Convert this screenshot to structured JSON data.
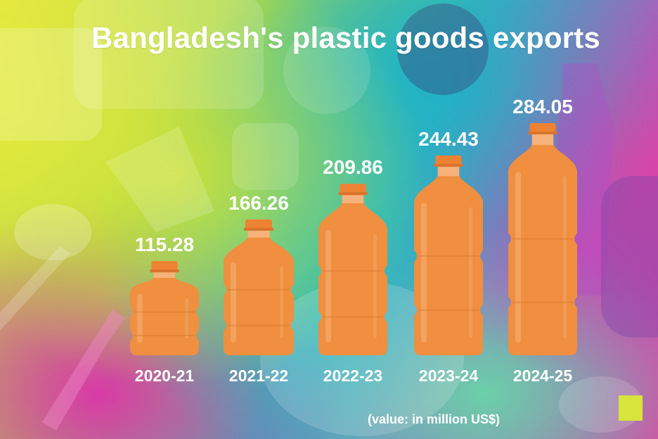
{
  "title": "Bangladesh's plastic goods exports",
  "unit_note": "(value: in million US$)",
  "colors": {
    "bottle": "#ef8f3f",
    "bottle_dark": "#d9742c",
    "bottle_highlight": "#f6b27a",
    "cap": "#ee8233",
    "text": "#ffffff"
  },
  "chart_data": {
    "type": "bar",
    "categories": [
      "2020-21",
      "2021-22",
      "2022-23",
      "2023-24",
      "2024-25"
    ],
    "values": [
      115.28,
      166.26,
      209.86,
      244.43,
      284.05
    ],
    "value_labels": [
      "115.28",
      "166.26",
      "209.86",
      "244.43",
      "284.05"
    ],
    "title": "Bangladesh's plastic goods exports",
    "ylim": [
      0,
      284.05
    ],
    "grid": false,
    "legend": "none"
  }
}
